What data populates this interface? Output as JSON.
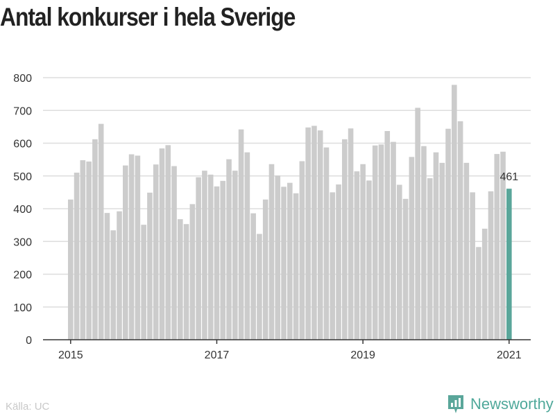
{
  "title": "Antal konkurser i hela Sverige",
  "source": "Källa: UC",
  "brand": "Newsworthy",
  "colors": {
    "bar": "#cccccc",
    "highlight": "#5aa69a",
    "grid": "#dddddd",
    "axis": "#333333",
    "text": "#333333"
  },
  "brand_icon": "newsworthy-logo-icon",
  "chart_data": {
    "type": "bar",
    "title": "Antal konkurser i hela Sverige",
    "xlabel": "",
    "ylabel": "",
    "ylim": [
      0,
      800
    ],
    "yticks": [
      "0",
      "100",
      "200",
      "300",
      "400",
      "500",
      "600",
      "700",
      "800"
    ],
    "xticks": [
      {
        "label": "2015",
        "index": 0
      },
      {
        "label": "2017",
        "index": 24
      },
      {
        "label": "2019",
        "index": 48
      },
      {
        "label": "2021",
        "index": 72
      }
    ],
    "grid": true,
    "highlight_index": 72,
    "highlight_label": "461",
    "categories": [
      "2015-01",
      "2015-02",
      "2015-03",
      "2015-04",
      "2015-05",
      "2015-06",
      "2015-07",
      "2015-08",
      "2015-09",
      "2015-10",
      "2015-11",
      "2015-12",
      "2016-01",
      "2016-02",
      "2016-03",
      "2016-04",
      "2016-05",
      "2016-06",
      "2016-07",
      "2016-08",
      "2016-09",
      "2016-10",
      "2016-11",
      "2016-12",
      "2017-01",
      "2017-02",
      "2017-03",
      "2017-04",
      "2017-05",
      "2017-06",
      "2017-07",
      "2017-08",
      "2017-09",
      "2017-10",
      "2017-11",
      "2017-12",
      "2018-01",
      "2018-02",
      "2018-03",
      "2018-04",
      "2018-05",
      "2018-06",
      "2018-07",
      "2018-08",
      "2018-09",
      "2018-10",
      "2018-11",
      "2018-12",
      "2019-01",
      "2019-02",
      "2019-03",
      "2019-04",
      "2019-05",
      "2019-06",
      "2019-07",
      "2019-08",
      "2019-09",
      "2019-10",
      "2019-11",
      "2019-12",
      "2020-01",
      "2020-02",
      "2020-03",
      "2020-04",
      "2020-05",
      "2020-06",
      "2020-07",
      "2020-08",
      "2020-09",
      "2020-10",
      "2020-11",
      "2020-12",
      "2021-01"
    ],
    "values": [
      428,
      510,
      548,
      544,
      612,
      659,
      387,
      334,
      392,
      532,
      566,
      562,
      351,
      449,
      535,
      584,
      594,
      530,
      368,
      353,
      414,
      496,
      516,
      504,
      468,
      485,
      551,
      516,
      642,
      572,
      386,
      323,
      428,
      536,
      501,
      467,
      479,
      447,
      545,
      648,
      653,
      639,
      587,
      450,
      474,
      612,
      645,
      514,
      536,
      486,
      593,
      596,
      637,
      604,
      473,
      430,
      558,
      708,
      591,
      493,
      572,
      540,
      644,
      778,
      667,
      540,
      450,
      283,
      339,
      453,
      567,
      574,
      461
    ]
  }
}
